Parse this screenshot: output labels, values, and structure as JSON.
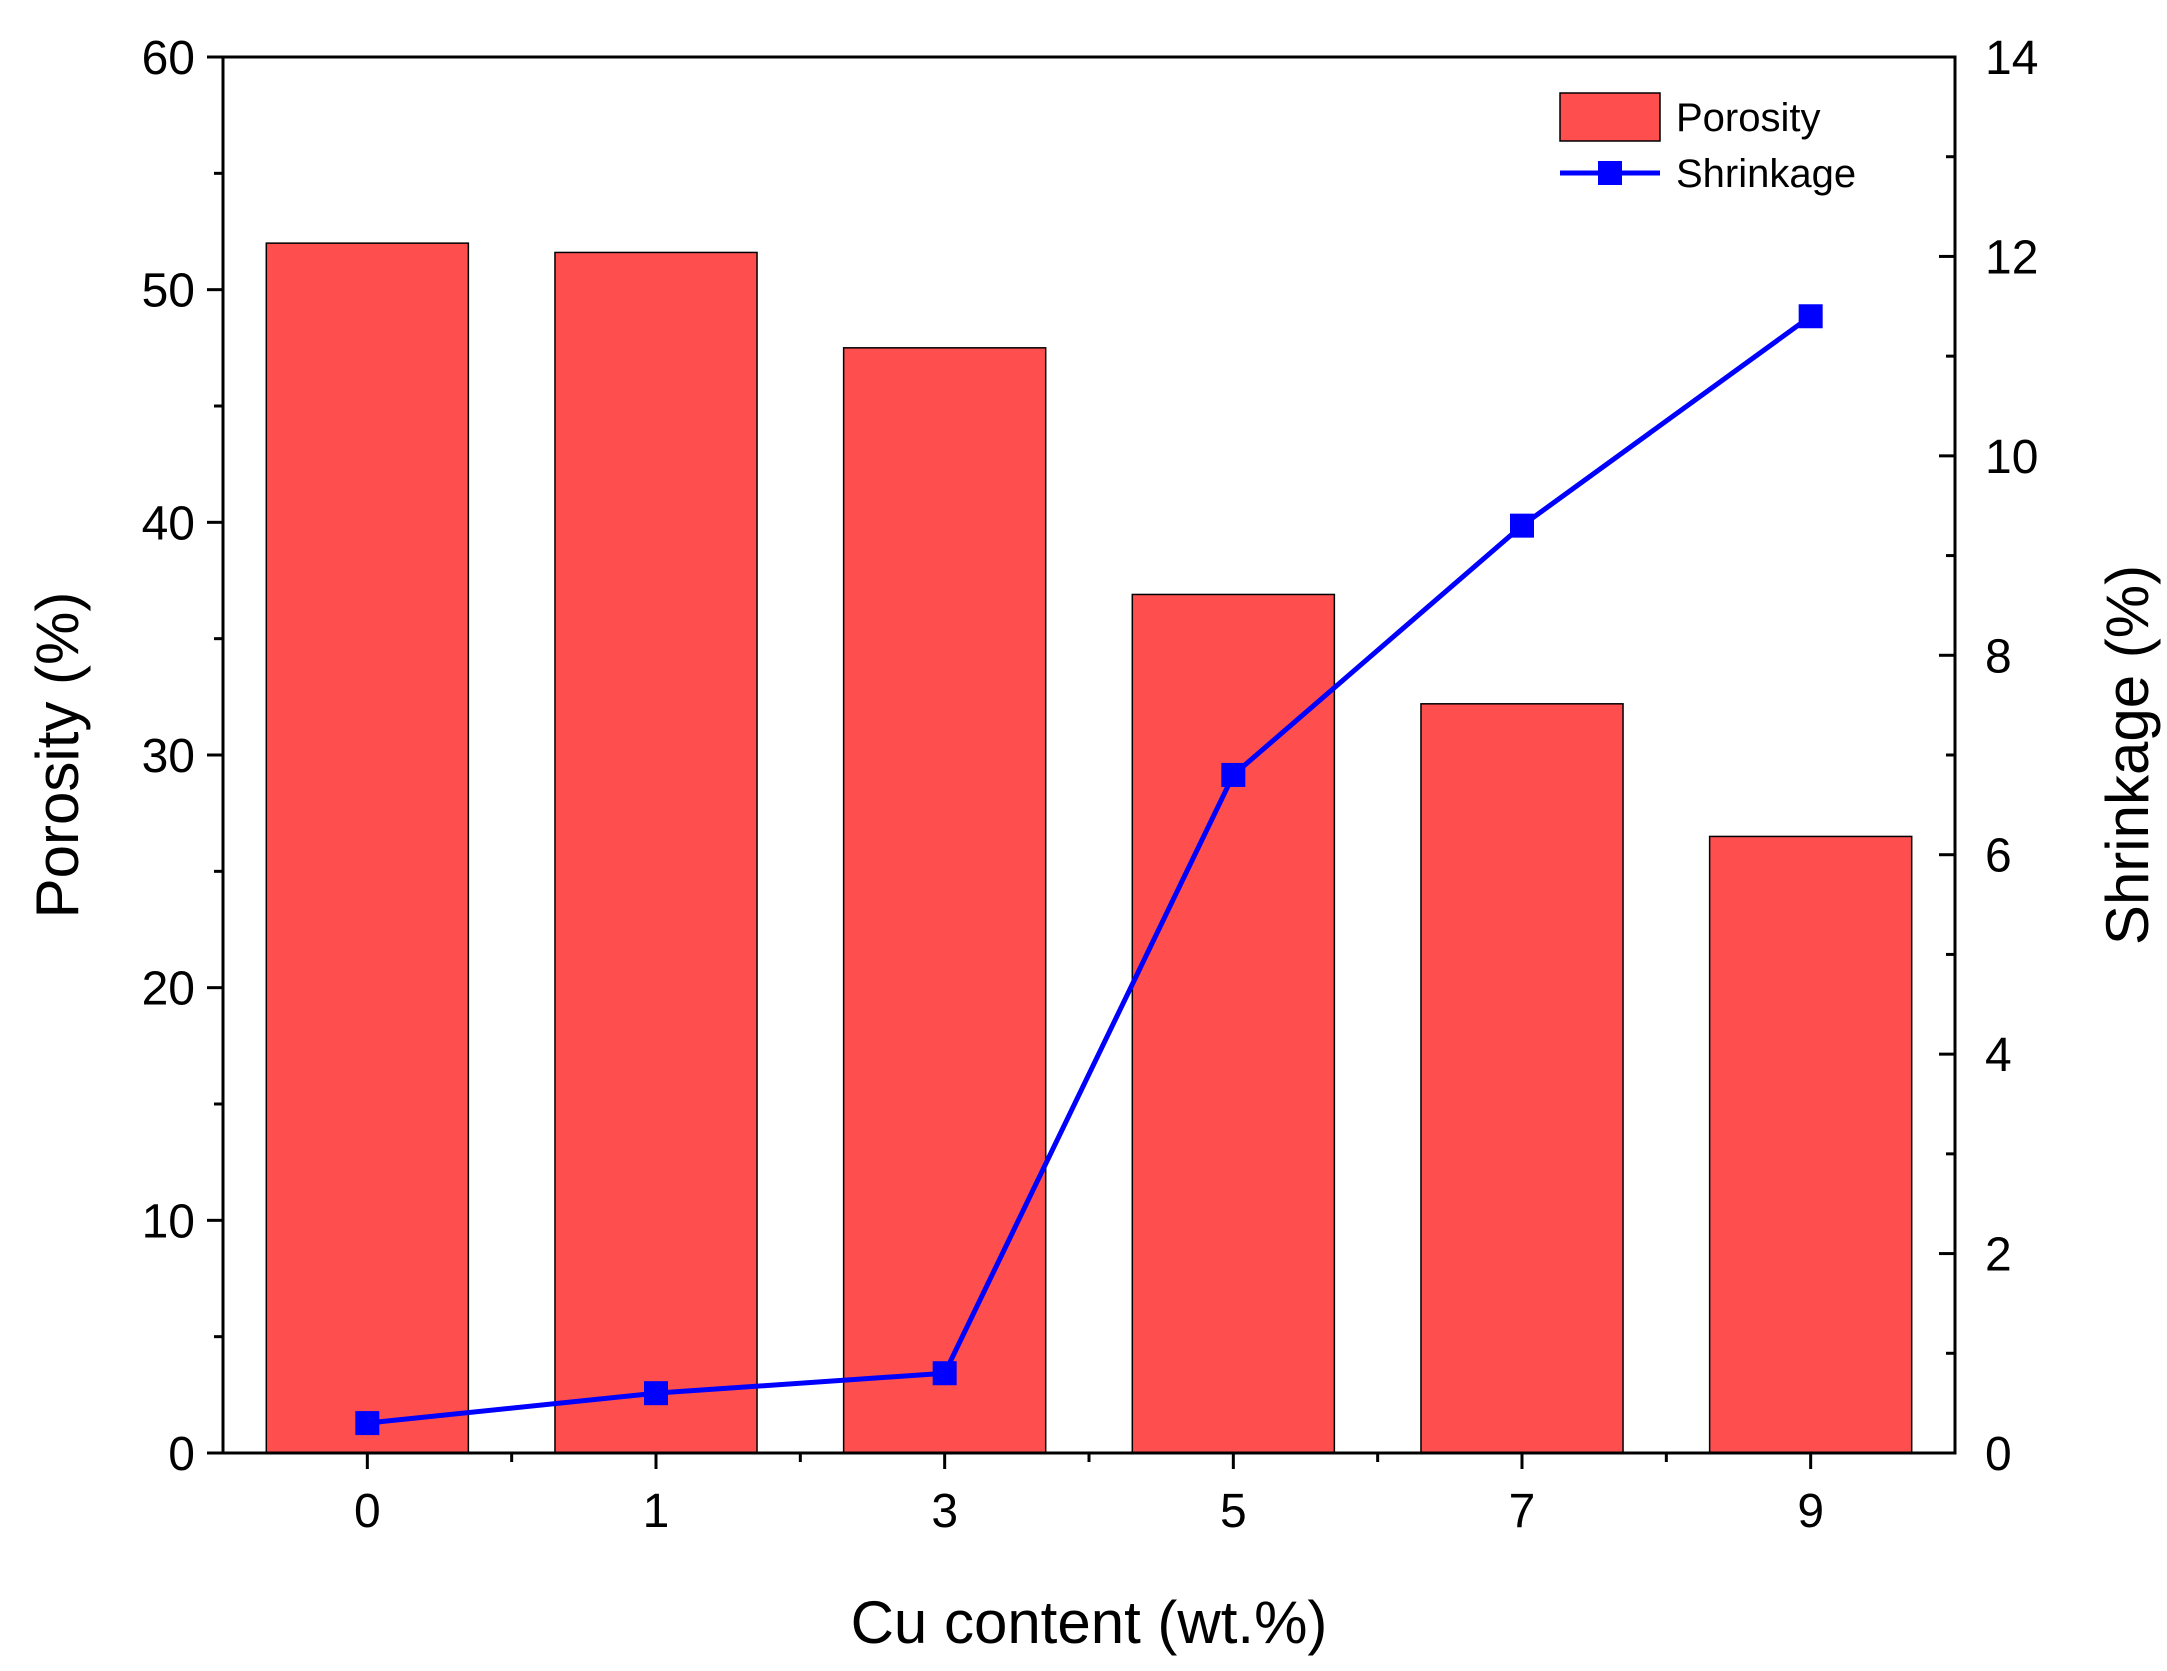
{
  "chart_data": {
    "type": "bar",
    "categories": [
      "0",
      "1",
      "3",
      "5",
      "7",
      "9"
    ],
    "xlabel": "Cu content (wt.%)",
    "series": [
      {
        "name": "Porosity",
        "type": "bar",
        "axis": "left",
        "values": [
          52.0,
          51.6,
          47.5,
          36.9,
          32.2,
          26.5
        ],
        "color": "#ff4e4e"
      },
      {
        "name": "Shrinkage",
        "type": "line",
        "axis": "right",
        "marker": "square",
        "values": [
          0.3,
          0.6,
          0.8,
          6.8,
          9.3,
          11.4
        ],
        "color": "#0000ff"
      }
    ],
    "y_left": {
      "label": "Porosity (%)",
      "ylim": [
        0,
        60
      ],
      "ticks": [
        "0",
        "10",
        "20",
        "30",
        "40",
        "50",
        "60"
      ]
    },
    "y_right": {
      "label": "Shrinkage (%)",
      "ylim": [
        0,
        14
      ],
      "ticks": [
        "0",
        "2",
        "4",
        "6",
        "8",
        "10",
        "12",
        "14"
      ]
    },
    "grid": false,
    "legend_position": "top-right"
  }
}
